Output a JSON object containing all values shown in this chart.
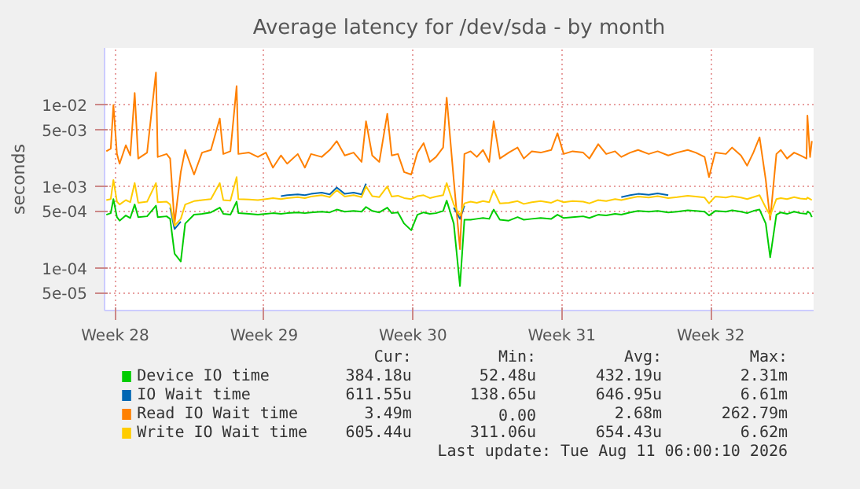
{
  "chart_data": {
    "type": "line",
    "title": "Average latency for /dev/sda - by month",
    "ylabel": "seconds",
    "log": "y",
    "grid": true,
    "legend": "bottom",
    "xlim": [
      "2026-07-09T00:00",
      "2026-08-11T08:00"
    ],
    "xticks": [
      {
        "value": "2026-07-09T12:00",
        "label": "Week 28"
      },
      {
        "value": "2026-07-16T12:00",
        "label": "Week 29"
      },
      {
        "value": "2026-07-23T12:00",
        "label": "Week 30"
      },
      {
        "value": "2026-07-30T12:00",
        "label": "Week 31"
      },
      {
        "value": "2026-08-06T12:00",
        "label": "Week 32"
      }
    ],
    "ylim": [
      3e-05,
      0.05
    ],
    "yticks": [
      {
        "value": 5e-05,
        "label": "5e-05"
      },
      {
        "value": 0.0001,
        "label": "1e-04"
      },
      {
        "value": 0.0005,
        "label": "5e-04"
      },
      {
        "value": 0.001,
        "label": "1e-03"
      },
      {
        "value": 0.005,
        "label": "5e-03"
      },
      {
        "value": 0.01,
        "label": "1e-02"
      }
    ],
    "x": [
      "2026-07-09T02:00",
      "2026-07-09T07:00",
      "2026-07-09T10:00",
      "2026-07-09T14:00",
      "2026-07-09T17:00",
      "2026-07-10T00:00",
      "2026-07-10T05:00",
      "2026-07-10T10:00",
      "2026-07-10T14:00",
      "2026-07-11T00:00",
      "2026-07-11T10:00",
      "2026-07-11T12:00",
      "2026-07-11T22:00",
      "2026-07-12T02:00",
      "2026-07-12T07:00",
      "2026-07-12T14:00",
      "2026-07-12T19:00",
      "2026-07-13T05:00",
      "2026-07-13T14:00",
      "2026-07-14T00:00",
      "2026-07-14T10:00",
      "2026-07-14T14:00",
      "2026-07-14T22:00",
      "2026-07-15T05:00",
      "2026-07-15T07:00",
      "2026-07-15T19:00",
      "2026-07-16T05:00",
      "2026-07-16T14:00",
      "2026-07-16T22:00",
      "2026-07-17T07:00",
      "2026-07-17T14:00",
      "2026-07-18T02:00",
      "2026-07-18T10:00",
      "2026-07-18T17:00",
      "2026-07-19T05:00",
      "2026-07-19T14:00",
      "2026-07-19T22:00",
      "2026-07-20T07:00",
      "2026-07-20T17:00",
      "2026-07-21T02:00",
      "2026-07-21T07:00",
      "2026-07-21T14:00",
      "2026-07-21T22:00",
      "2026-07-22T07:00",
      "2026-07-22T12:00",
      "2026-07-22T19:00",
      "2026-07-23T02:00",
      "2026-07-23T10:00",
      "2026-07-23T17:00",
      "2026-07-24T00:00",
      "2026-07-24T07:00",
      "2026-07-24T14:00",
      "2026-07-24T22:00",
      "2026-07-25T02:00",
      "2026-07-25T10:00",
      "2026-07-25T17:00",
      "2026-07-25T22:00",
      "2026-07-26T05:00",
      "2026-07-26T12:00",
      "2026-07-26T19:00",
      "2026-07-27T02:00",
      "2026-07-27T07:00",
      "2026-07-27T14:00",
      "2026-07-28T00:00",
      "2026-07-28T10:00",
      "2026-07-28T17:00",
      "2026-07-29T02:00",
      "2026-07-29T12:00",
      "2026-07-30T00:00",
      "2026-07-30T07:00",
      "2026-07-30T14:00",
      "2026-07-31T00:00",
      "2026-07-31T12:00",
      "2026-07-31T19:00",
      "2026-08-01T05:00",
      "2026-08-01T14:00",
      "2026-08-02T00:00",
      "2026-08-02T07:00",
      "2026-08-02T17:00",
      "2026-08-03T02:00",
      "2026-08-03T14:00",
      "2026-08-04T00:00",
      "2026-08-04T12:00",
      "2026-08-04T22:00",
      "2026-08-05T10:00",
      "2026-08-05T19:00",
      "2026-08-06T05:00",
      "2026-08-06T10:00",
      "2026-08-06T17:00",
      "2026-08-07T05:00",
      "2026-08-07T12:00",
      "2026-08-07T22:00",
      "2026-08-08T05:00",
      "2026-08-08T12:00",
      "2026-08-08T19:00",
      "2026-08-09T02:00",
      "2026-08-09T07:00",
      "2026-08-09T14:00",
      "2026-08-09T19:00",
      "2026-08-10T02:00",
      "2026-08-10T10:00",
      "2026-08-10T17:00",
      "2026-08-11T00:00",
      "2026-08-11T01:00",
      "2026-08-11T04:00",
      "2026-08-11T06:00"
    ],
    "series": [
      {
        "name": "Device IO time",
        "color": "#00cc00",
        "values": [
          0.00045,
          0.00047,
          0.0007,
          0.00042,
          0.00038,
          0.00044,
          0.00041,
          0.0006,
          0.00042,
          0.00043,
          0.00058,
          0.00042,
          0.00043,
          0.0004,
          0.00015,
          0.00012,
          0.00035,
          0.00045,
          0.00046,
          0.00048,
          0.00055,
          0.00046,
          0.00045,
          0.00065,
          0.00047,
          0.00046,
          0.00045,
          0.00046,
          0.00047,
          0.00046,
          0.00047,
          0.00048,
          0.00047,
          0.00048,
          0.00049,
          0.00048,
          0.00052,
          0.00049,
          0.0005,
          0.00049,
          0.00056,
          0.0005,
          0.00048,
          0.00055,
          0.00047,
          0.00048,
          0.00035,
          0.00029,
          0.00045,
          0.00048,
          0.00046,
          0.00047,
          0.0005,
          0.00067,
          0.00035,
          6e-05,
          0.00039,
          0.00039,
          0.0004,
          0.00041,
          0.0004,
          0.00052,
          0.00039,
          0.00038,
          0.00042,
          0.00039,
          0.0004,
          0.00041,
          0.0004,
          0.00045,
          0.00041,
          0.00042,
          0.00043,
          0.00041,
          0.00045,
          0.00044,
          0.00046,
          0.00045,
          0.00048,
          0.0005,
          0.00049,
          0.0005,
          0.00048,
          0.00049,
          0.00051,
          0.0005,
          0.00049,
          0.00044,
          0.0005,
          0.00049,
          0.00051,
          0.00049,
          0.00047,
          0.0005,
          0.00052,
          0.00035,
          0.000135,
          0.00045,
          0.00048,
          0.00046,
          0.00049,
          0.00047,
          0.00046,
          0.00049,
          0.00047,
          0.00042
        ]
      },
      {
        "name": "IO Wait time",
        "color": "#0066b3",
        "values": [
          null,
          null,
          null,
          null,
          null,
          null,
          null,
          null,
          null,
          null,
          null,
          null,
          null,
          0.00055,
          0.0003,
          0.00037,
          null,
          null,
          null,
          null,
          null,
          null,
          null,
          null,
          null,
          null,
          null,
          null,
          null,
          0.00076,
          0.00078,
          0.0008,
          0.00078,
          0.00081,
          0.00084,
          0.0008,
          0.00097,
          0.00081,
          0.00084,
          0.0008,
          0.00108,
          null,
          null,
          null,
          null,
          null,
          null,
          null,
          null,
          null,
          null,
          null,
          null,
          null,
          0.00055,
          0.0004,
          0.00058,
          null,
          null,
          null,
          null,
          null,
          null,
          null,
          null,
          null,
          null,
          null,
          null,
          null,
          null,
          null,
          null,
          null,
          null,
          null,
          null,
          0.00074,
          0.00078,
          0.00081,
          0.00079,
          0.00082,
          0.00078,
          null,
          null,
          null,
          null,
          null,
          null,
          null,
          null,
          null,
          null,
          null,
          null,
          null,
          null,
          null,
          null,
          null,
          null,
          null,
          null,
          null,
          null,
          null
        ]
      },
      {
        "name": "Read IO Wait time",
        "color": "#ff8000",
        "values": [
          0.0027,
          0.0029,
          0.01,
          0.0025,
          0.0019,
          0.0032,
          0.0024,
          0.014,
          0.0022,
          0.0026,
          0.025,
          0.0023,
          0.0025,
          0.0022,
          0.00035,
          0.0015,
          0.0028,
          0.0014,
          0.0026,
          0.0028,
          0.0068,
          0.0025,
          0.0027,
          0.017,
          0.0025,
          0.0026,
          0.0023,
          0.0026,
          0.0017,
          0.0024,
          0.0019,
          0.0025,
          0.0017,
          0.0025,
          0.0023,
          0.0028,
          0.0036,
          0.0024,
          0.0026,
          0.002,
          0.0063,
          0.0024,
          0.002,
          0.0078,
          0.0024,
          0.0025,
          0.0015,
          0.0014,
          0.0026,
          0.0034,
          0.002,
          0.0023,
          0.003,
          0.0123,
          0.0012,
          0.00017,
          0.0025,
          0.0027,
          0.0023,
          0.0028,
          0.002,
          0.0063,
          0.0022,
          0.0026,
          0.003,
          0.0022,
          0.0027,
          0.0026,
          0.0028,
          0.0045,
          0.0025,
          0.0027,
          0.0026,
          0.0022,
          0.0033,
          0.0025,
          0.0027,
          0.0023,
          0.0026,
          0.0028,
          0.0025,
          0.0027,
          0.0024,
          0.0026,
          0.0028,
          0.0026,
          0.0023,
          0.0013,
          0.0026,
          0.0025,
          0.003,
          0.0024,
          0.0018,
          0.0026,
          0.004,
          0.0012,
          0.00039,
          0.0025,
          0.0028,
          0.0022,
          0.0026,
          0.0024,
          0.0022,
          0.0074,
          0.0023,
          0.0036
        ]
      },
      {
        "name": "Write IO Wait time",
        "color": "#ffcc00",
        "values": [
          0.00068,
          0.0007,
          0.0012,
          0.00065,
          0.0006,
          0.00068,
          0.00064,
          0.0011,
          0.00063,
          0.00065,
          0.0011,
          0.00064,
          0.00065,
          0.0006,
          0.00033,
          0.0004,
          0.0006,
          0.00066,
          0.00068,
          0.0007,
          0.0011,
          0.00068,
          0.00067,
          0.0013,
          0.0007,
          0.00069,
          0.00068,
          0.0007,
          0.00072,
          0.0007,
          0.00072,
          0.00074,
          0.00072,
          0.00075,
          0.00078,
          0.00074,
          0.0009,
          0.00075,
          0.00078,
          0.00074,
          0.001,
          0.00076,
          0.00074,
          0.001,
          0.00075,
          0.00077,
          0.00072,
          0.0007,
          0.00076,
          0.00078,
          0.00072,
          0.00075,
          0.00078,
          0.0011,
          0.0006,
          0.00044,
          0.00062,
          0.00065,
          0.00063,
          0.00066,
          0.00064,
          0.0009,
          0.00062,
          0.00063,
          0.00066,
          0.00061,
          0.00064,
          0.00066,
          0.00063,
          0.00068,
          0.00064,
          0.00066,
          0.00065,
          0.00062,
          0.00068,
          0.00066,
          0.0007,
          0.00068,
          0.00072,
          0.00075,
          0.00073,
          0.00076,
          0.00072,
          0.00074,
          0.00077,
          0.00075,
          0.00073,
          0.00062,
          0.00075,
          0.00073,
          0.00076,
          0.00073,
          0.0007,
          0.00074,
          0.00078,
          0.00055,
          0.00044,
          0.0007,
          0.00072,
          0.0007,
          0.00074,
          0.00071,
          0.0007,
          0.00073,
          0.0007,
          0.00068
        ]
      }
    ],
    "annotations": [
      "Cur:",
      "Min:",
      "Avg:",
      "Max:",
      "384.18u",
      "52.48u",
      "432.19u",
      "2.31m",
      "611.55u",
      "138.65u",
      "646.95u",
      "6.61m",
      "3.49m",
      "0.00",
      "2.68m",
      "262.79m",
      "605.44u",
      "311.06u",
      "654.43u",
      "6.62m",
      "Last update: Tue Aug 11 06:00:10 2026"
    ]
  }
}
